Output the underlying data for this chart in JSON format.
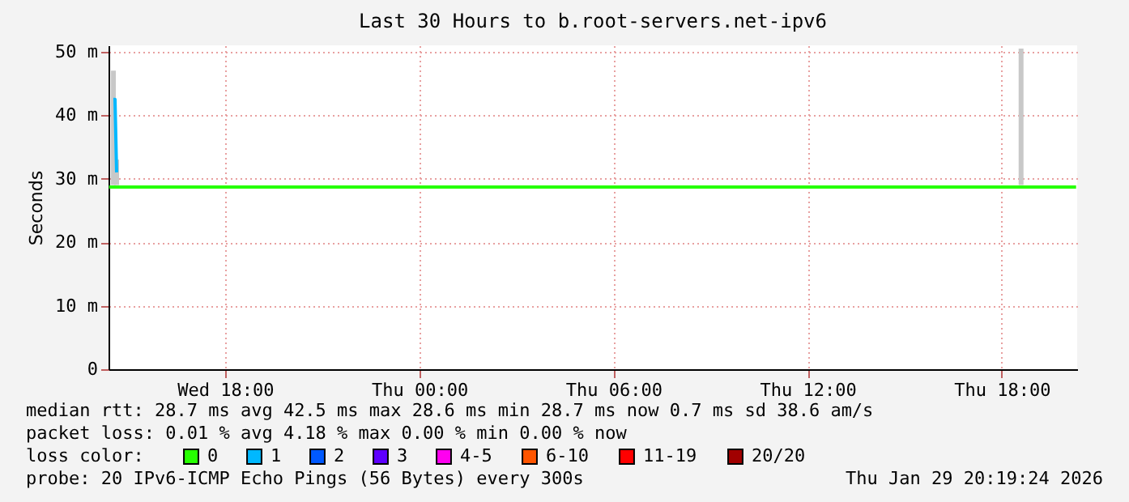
{
  "chart_data": {
    "type": "line",
    "title": "Last 30 Hours to b.root-servers.net-ipv6",
    "ylabel": "Seconds",
    "xlim": [
      "2026-01-28T14:24",
      "2026-01-29T20:20"
    ],
    "xticks": [
      {
        "value": "2026-01-28T18:00",
        "label": "Wed 18:00"
      },
      {
        "value": "2026-01-29T00:00",
        "label": "Thu 00:00"
      },
      {
        "value": "2026-01-29T06:00",
        "label": "Thu 06:00"
      },
      {
        "value": "2026-01-29T12:00",
        "label": "Thu 12:00"
      },
      {
        "value": "2026-01-29T18:00",
        "label": "Thu 18:00"
      }
    ],
    "ylim": [
      0,
      51
    ],
    "yticks": [
      0,
      {
        "value": 10,
        "label": "10 m"
      },
      {
        "value": 20,
        "label": "20 m"
      },
      {
        "value": 30,
        "label": "30 m"
      },
      {
        "value": 40,
        "label": "40 m"
      },
      {
        "value": 50,
        "label": "50 m"
      }
    ],
    "grid": true,
    "legend": "bottom",
    "legend_title": "loss color:",
    "series": [
      {
        "type": "bar",
        "color": "#c8c8c8",
        "x": [
          "2026-01-28T14:33",
          "2026-01-28T14:39",
          "2026-01-29T18:36"
        ],
        "base": [
          29,
          29,
          29
        ],
        "values": [
          18,
          4,
          21.5
        ]
      },
      {
        "name": "0",
        "color": "#26ff00",
        "x": [
          "2026-01-28T14:25",
          "2026-01-29T20:18"
        ],
        "values": [
          28.7,
          28.7
        ]
      },
      {
        "name": "1",
        "color": "#00b8ff",
        "x": [
          "2026-01-28T14:33",
          "2026-01-28T14:36",
          "2026-01-28T14:39"
        ],
        "values": [
          42.5,
          42.5,
          31
        ]
      },
      {
        "name": "2",
        "color": "#0059ff"
      },
      {
        "name": "3",
        "color": "#5e00ff"
      },
      {
        "name": "4-5",
        "color": "#ff00f0"
      },
      {
        "name": "6-10",
        "color": "#ff5500"
      },
      {
        "name": "11-19",
        "color": "#ff0000"
      },
      {
        "name": "20/20",
        "color": "#a10000"
      }
    ],
    "annotations": [
      "median rtt:  28.7 ms avg  42.5 ms max  28.6 ms min  28.7 ms now  0.7 ms sd  38.6   am/s",
      "packet loss: 0.01 % avg  4.18 % max  0.00 % min  0.00 % now",
      "probe:       20 IPv6-ICMP Echo Pings (56 Bytes) every 300s",
      "Thu Jan 29 20:19:24 2026"
    ]
  }
}
